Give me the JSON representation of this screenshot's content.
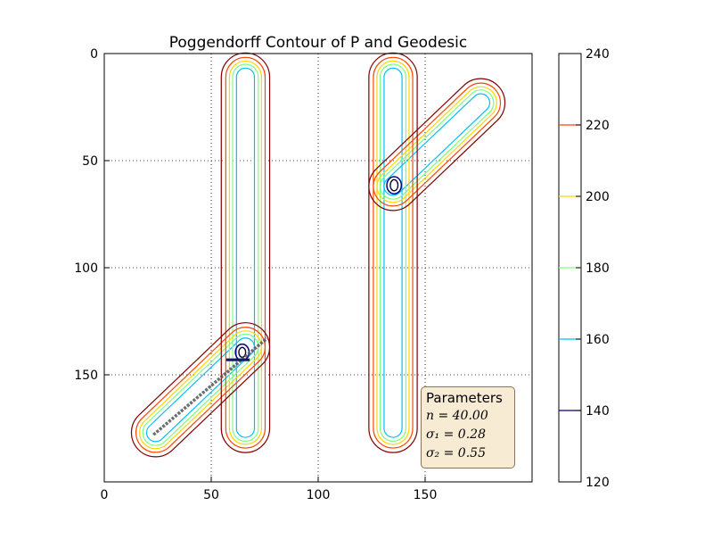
{
  "colors": {
    "c140": "#00007f",
    "c160": "#00bfff",
    "c180": "#7fff7f",
    "c200": "#ffd700",
    "c220": "#ff4500",
    "c240": "#7f0000",
    "geodesic": "#555555"
  },
  "chart_data": {
    "type": "contour",
    "title": "Poggendorff Contour of P and Geodesic",
    "xlabel": "",
    "ylabel": "",
    "xlim": [
      0,
      200
    ],
    "ylim": [
      200,
      0
    ],
    "x_ticks": [
      "0",
      "50",
      "100",
      "150"
    ],
    "y_ticks": [
      "0",
      "50",
      "100",
      "150"
    ],
    "grid": true,
    "colorbar": {
      "ticks": [
        "120",
        "140",
        "160",
        "180",
        "200",
        "220",
        "240"
      ],
      "levels": [
        140,
        160,
        180,
        200,
        220,
        240
      ]
    },
    "geodesic": {
      "from": [
        23,
        178
      ],
      "to": [
        76,
        133
      ]
    },
    "parameters": {
      "title": "Parameters",
      "lines": [
        "n = 40.00",
        "σ₁ = 0.28",
        "σ₂ = 0.55"
      ]
    }
  }
}
